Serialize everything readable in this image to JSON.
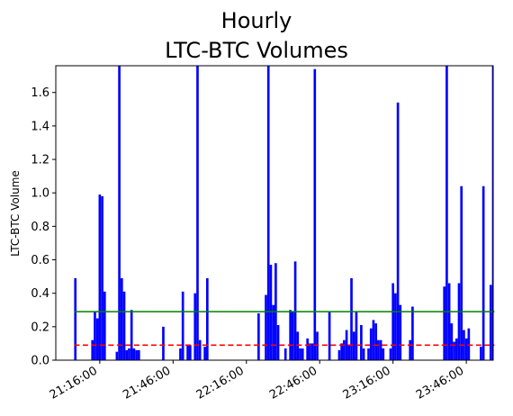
{
  "chart_data": {
    "type": "bar",
    "title_lines": [
      "Hourly",
      "LTC-BTC Volumes"
    ],
    "xlabel": "",
    "ylabel": "LTC-BTC Volume",
    "ylim": [
      0,
      1.76
    ],
    "xlim_minutes": [
      1258,
      1437
    ],
    "x_unit": "minutes since 00:00",
    "yticks": [
      0.0,
      0.2,
      0.4,
      0.6,
      0.8,
      1.0,
      1.2,
      1.4,
      1.6
    ],
    "ytick_labels": [
      "0.0",
      "0.2",
      "0.4",
      "0.6",
      "0.8",
      "1.0",
      "1.2",
      "1.4",
      "1.6"
    ],
    "xticks": [
      1276,
      1306,
      1336,
      1366,
      1396,
      1426
    ],
    "xtick_labels": [
      "21:16:00",
      "21:46:00",
      "22:16:00",
      "22:46:00",
      "23:16:00",
      "23:46:00"
    ],
    "bar_color": "#0000ff",
    "series": [
      {
        "values": [
          [
            1266,
            0.49
          ],
          [
            1273,
            0.12
          ],
          [
            1274,
            0.29
          ],
          [
            1275,
            0.25
          ],
          [
            1276,
            0.99
          ],
          [
            1277,
            0.98
          ],
          [
            1278,
            0.41
          ],
          [
            1283,
            0.05
          ],
          [
            1284,
            1.76
          ],
          [
            1285,
            0.49
          ],
          [
            1286,
            0.41
          ],
          [
            1287,
            0.06
          ],
          [
            1288,
            0.07
          ],
          [
            1289,
            0.3
          ],
          [
            1290,
            0.07
          ],
          [
            1291,
            0.06
          ],
          [
            1292,
            0.06
          ],
          [
            1302,
            0.2
          ],
          [
            1309,
            0.07
          ],
          [
            1310,
            0.41
          ],
          [
            1312,
            0.09
          ],
          [
            1313,
            0.09
          ],
          [
            1315,
            0.4
          ],
          [
            1316,
            1.76
          ],
          [
            1317,
            0.12
          ],
          [
            1319,
            0.08
          ],
          [
            1320,
            0.49
          ],
          [
            1341,
            0.28
          ],
          [
            1344,
            0.39
          ],
          [
            1345,
            1.76
          ],
          [
            1346,
            0.57
          ],
          [
            1347,
            0.33
          ],
          [
            1348,
            0.58
          ],
          [
            1349,
            0.21
          ],
          [
            1352,
            0.07
          ],
          [
            1354,
            0.3
          ],
          [
            1355,
            0.29
          ],
          [
            1356,
            0.59
          ],
          [
            1357,
            0.17
          ],
          [
            1358,
            0.07
          ],
          [
            1359,
            0.07
          ],
          [
            1361,
            0.13
          ],
          [
            1362,
            0.1
          ],
          [
            1363,
            0.1
          ],
          [
            1364,
            1.74
          ],
          [
            1365,
            0.17
          ],
          [
            1370,
            0.29
          ],
          [
            1374,
            0.06
          ],
          [
            1375,
            0.1
          ],
          [
            1376,
            0.12
          ],
          [
            1377,
            0.18
          ],
          [
            1378,
            0.09
          ],
          [
            1379,
            0.49
          ],
          [
            1380,
            0.17
          ],
          [
            1381,
            0.29
          ],
          [
            1383,
            0.21
          ],
          [
            1384,
            0.07
          ],
          [
            1386,
            0.07
          ],
          [
            1387,
            0.19
          ],
          [
            1388,
            0.24
          ],
          [
            1389,
            0.22
          ],
          [
            1390,
            0.12
          ],
          [
            1391,
            0.12
          ],
          [
            1392,
            0.07
          ],
          [
            1395,
            0.07
          ],
          [
            1396,
            0.46
          ],
          [
            1397,
            0.4
          ],
          [
            1398,
            1.54
          ],
          [
            1399,
            0.33
          ],
          [
            1403,
            0.12
          ],
          [
            1404,
            0.32
          ],
          [
            1417,
            0.44
          ],
          [
            1418,
            1.76
          ],
          [
            1419,
            0.46
          ],
          [
            1420,
            0.22
          ],
          [
            1421,
            0.11
          ],
          [
            1422,
            0.13
          ],
          [
            1423,
            0.46
          ],
          [
            1424,
            1.04
          ],
          [
            1425,
            0.18
          ],
          [
            1426,
            0.13
          ],
          [
            1427,
            0.19
          ],
          [
            1432,
            0.08
          ],
          [
            1433,
            1.04
          ],
          [
            1436,
            0.45
          ],
          [
            1437,
            1.76
          ]
        ]
      }
    ],
    "reference_lines": [
      {
        "y": 0.29,
        "color": "#008000",
        "style": "solid"
      },
      {
        "y": 0.09,
        "color": "#ff0000",
        "style": "dashed"
      }
    ],
    "grid": false,
    "legend": "none"
  }
}
